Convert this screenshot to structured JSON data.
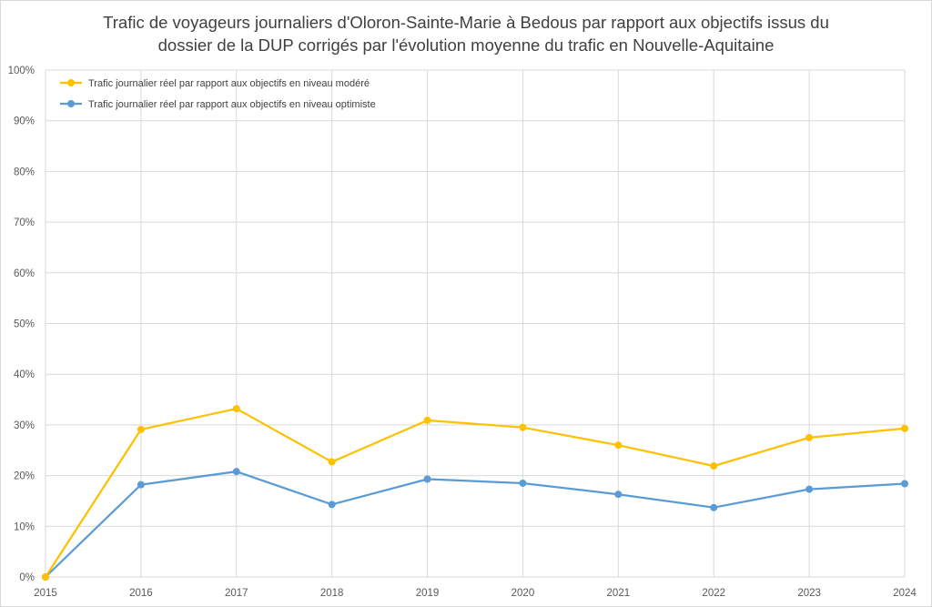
{
  "chart_data": {
    "type": "line",
    "title_lines": [
      "Trafic de voyageurs journaliers d'Oloron-Sainte-Marie à Bedous par rapport aux objectifs issus du",
      "dossier de la DUP corrigés par l'évolution moyenne du trafic en Nouvelle-Aquitaine"
    ],
    "x": [
      "2015",
      "2016",
      "2017",
      "2018",
      "2019",
      "2020",
      "2021",
      "2022",
      "2023",
      "2024"
    ],
    "y_ticks": [
      "0%",
      "10%",
      "20%",
      "30%",
      "40%",
      "50%",
      "60%",
      "70%",
      "80%",
      "90%",
      "100%"
    ],
    "ylim": [
      0,
      100
    ],
    "grid": true,
    "legend_position": "top-left",
    "series": [
      {
        "name": "Trafic journalier réel par rapport aux objectifs en niveau modéré",
        "color": "#FFC000",
        "values": [
          0,
          29.1,
          33.2,
          22.7,
          30.9,
          29.5,
          26.0,
          21.9,
          27.5,
          29.3
        ]
      },
      {
        "name": "Trafic journalier réel par rapport aux objectifs en niveau optimiste",
        "color": "#5B9BD5",
        "values": [
          0,
          18.2,
          20.8,
          14.3,
          19.3,
          18.5,
          16.3,
          13.7,
          17.3,
          18.4
        ]
      }
    ]
  }
}
